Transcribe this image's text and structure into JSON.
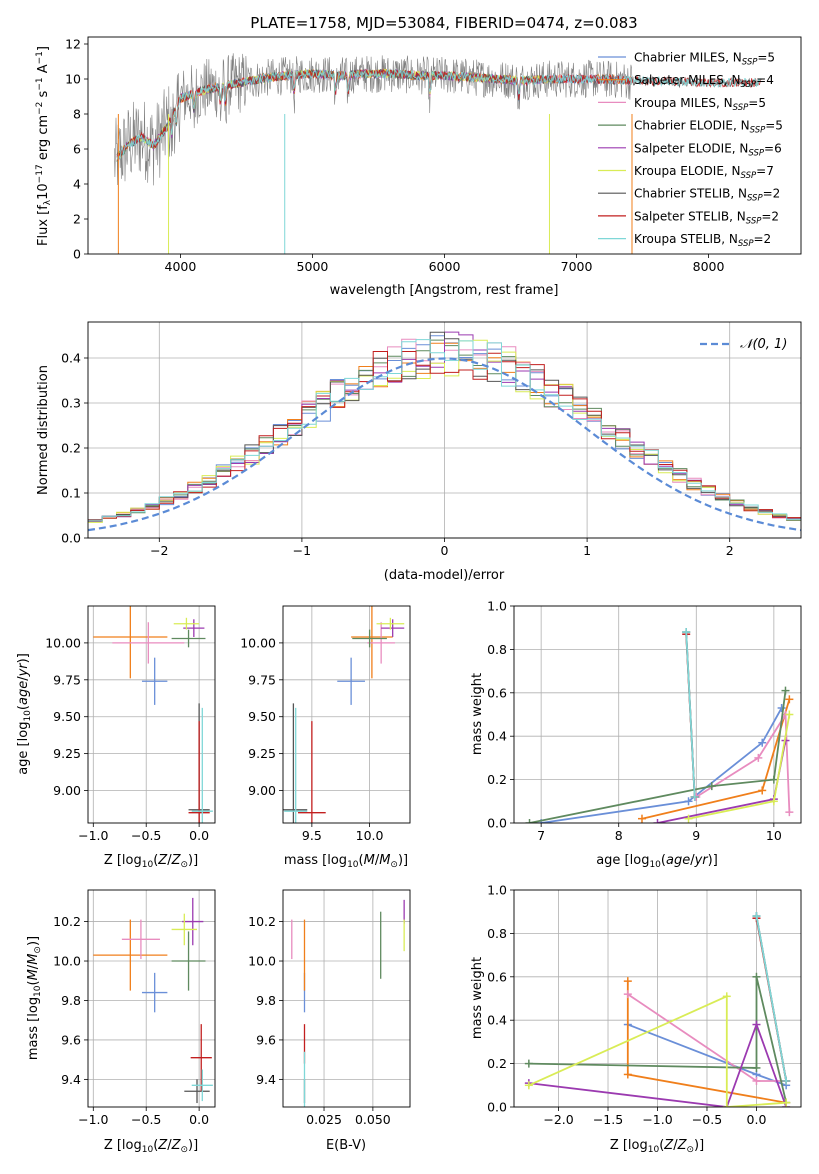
{
  "title": "PLATE=1758, MJD=53084, FIBERID=0474, z=0.083",
  "colors": {
    "Chabrier MILES": "#6a8fd8",
    "Salpeter MILES": "#f07f1b",
    "Kroupa MILES": "#e88cbf",
    "Chabrier ELODIE": "#5f8a5f",
    "Salpeter ELODIE": "#9b3ab0",
    "Kroupa ELODIE": "#d9ec56",
    "Chabrier STELIB": "#555555",
    "Salpeter STELIB": "#c21f1f",
    "Kroupa STELIB": "#7fd7d7",
    "data": "#808080",
    "normal": "#5b8bd6"
  },
  "chart_data": [
    {
      "type": "line",
      "panel": "spectrum",
      "xlabel": "wavelength [Angstrom, rest frame]",
      "ylabel": "Flux [f",
      "ylabel_sub": "λ",
      "ylabel_rest": "10",
      "ylabel_exp1": "−17",
      "ylabel_rest2": " erg cm",
      "ylabel_exp2": "−2",
      "ylabel_rest3": " s",
      "ylabel_exp3": "−1",
      "ylabel_rest4": " A",
      "ylabel_exp4": "−1",
      "ylabel_end": "]",
      "xlim": [
        3300,
        8700
      ],
      "ylim": [
        0,
        12.4
      ],
      "xticks": [
        4000,
        5000,
        6000,
        7000,
        8000
      ],
      "yticks": [
        0,
        2,
        4,
        6,
        8,
        10,
        12
      ],
      "legend_position": "right",
      "legend": [
        {
          "name": "Chabrier MILES",
          "nssp": "5"
        },
        {
          "name": "Salpeter MILES",
          "nssp": "4"
        },
        {
          "name": "Kroupa MILES",
          "nssp": "5"
        },
        {
          "name": "Chabrier ELODIE",
          "nssp": "5"
        },
        {
          "name": "Salpeter ELODIE",
          "nssp": "6"
        },
        {
          "name": "Kroupa ELODIE",
          "nssp": "7"
        },
        {
          "name": "Chabrier STELIB",
          "nssp": "2"
        },
        {
          "name": "Salpeter STELIB",
          "nssp": "2"
        },
        {
          "name": "Kroupa STELIB",
          "nssp": "2"
        }
      ],
      "legend_prefix": "N",
      "legend_sub": "SSP",
      "model_continuum": {
        "x": [
          3500,
          3600,
          3700,
          3800,
          3900,
          4000,
          4200,
          4400,
          4600,
          4800,
          5000,
          5200,
          5400,
          5600,
          5800,
          6000,
          6200,
          6400,
          6600,
          6800,
          7000,
          7200,
          7400,
          7600,
          7800,
          8000,
          8200,
          8400
        ],
        "y": [
          5.3,
          6.2,
          6.7,
          6.2,
          7.3,
          8.9,
          9.4,
          9.7,
          10.0,
          10.2,
          10.3,
          10.2,
          10.3,
          10.3,
          10.2,
          10.2,
          10.1,
          10.0,
          9.9,
          10.0,
          10.0,
          10.0,
          9.9,
          9.9,
          9.8,
          9.8,
          9.8,
          9.8
        ]
      }
    },
    {
      "type": "bar",
      "panel": "residual histogram",
      "xlabel": "(data-model)/error",
      "ylabel": "Normed distribution",
      "xlim": [
        -2.5,
        2.5
      ],
      "ylim": [
        0,
        0.48
      ],
      "xticks": [
        -2,
        -1,
        0,
        1,
        2
      ],
      "yticks": [
        0.0,
        0.1,
        0.2,
        0.3,
        0.4
      ],
      "legend": "𝒩(0, 1)",
      "bin_width": 0.1
    },
    {
      "type": "scatter",
      "panel": "age vs Z",
      "xlabel": "Z [log",
      "ylabel": "age  [log",
      "xlim": [
        -1.05,
        0.15
      ],
      "ylim": [
        8.78,
        10.25
      ],
      "xticks": [
        -1.0,
        -0.5,
        0.0
      ],
      "yticks": [
        9.0,
        9.25,
        9.5,
        9.75,
        10.0
      ],
      "points": [
        {
          "series": "Chabrier MILES",
          "x": -0.42,
          "y": 9.74,
          "xerr": 0.12,
          "yerr": 0.16
        },
        {
          "series": "Salpeter MILES",
          "x": -0.65,
          "y": 10.04,
          "xerr": 0.35,
          "yerr": 0.28
        },
        {
          "series": "Kroupa MILES",
          "x": -0.48,
          "y": 10.0,
          "xerr": 0.34,
          "yerr": 0.14
        },
        {
          "series": "Chabrier ELODIE",
          "x": -0.1,
          "y": 10.03,
          "xerr": 0.16,
          "yerr": 0.06
        },
        {
          "series": "Salpeter ELODIE",
          "x": -0.05,
          "y": 10.1,
          "xerr": 0.1,
          "yerr": 0.06
        },
        {
          "series": "Kroupa ELODIE",
          "x": -0.12,
          "y": 10.13,
          "xerr": 0.12,
          "yerr": 0.04
        },
        {
          "series": "Chabrier STELIB",
          "x": 0.0,
          "y": 8.87,
          "xerr": 0.1,
          "yerr": 0.72
        },
        {
          "series": "Salpeter STELIB",
          "x": 0.0,
          "y": 8.85,
          "xerr": 0.1,
          "yerr": 0.62
        },
        {
          "series": "Kroupa STELIB",
          "x": 0.03,
          "y": 8.86,
          "xerr": 0.1,
          "yerr": 0.7
        }
      ]
    },
    {
      "type": "scatter",
      "panel": "age vs mass",
      "xlabel": "mass [log",
      "xlim": [
        9.25,
        10.35
      ],
      "ylim": [
        8.78,
        10.25
      ],
      "xticks": [
        9.5,
        10.0
      ],
      "yticks": [
        9.0,
        9.25,
        9.5,
        9.75,
        10.0
      ],
      "points": [
        {
          "series": "Chabrier MILES",
          "x": 9.84,
          "y": 9.74,
          "xerr": 0.12,
          "yerr": 0.16
        },
        {
          "series": "Salpeter MILES",
          "x": 10.02,
          "y": 10.04,
          "xerr": 0.18,
          "yerr": 0.28
        },
        {
          "series": "Kroupa MILES",
          "x": 10.1,
          "y": 10.0,
          "xerr": 0.12,
          "yerr": 0.14
        },
        {
          "series": "Chabrier ELODIE",
          "x": 10.0,
          "y": 10.03,
          "xerr": 0.15,
          "yerr": 0.06
        },
        {
          "series": "Salpeter ELODIE",
          "x": 10.2,
          "y": 10.1,
          "xerr": 0.1,
          "yerr": 0.06
        },
        {
          "series": "Kroupa ELODIE",
          "x": 10.18,
          "y": 10.13,
          "xerr": 0.12,
          "yerr": 0.04
        },
        {
          "series": "Chabrier STELIB",
          "x": 9.34,
          "y": 8.87,
          "xerr": 0.12,
          "yerr": 0.72
        },
        {
          "series": "Salpeter STELIB",
          "x": 9.5,
          "y": 8.85,
          "xerr": 0.12,
          "yerr": 0.62
        },
        {
          "series": "Kroupa STELIB",
          "x": 9.36,
          "y": 8.86,
          "xerr": 0.1,
          "yerr": 0.7
        }
      ]
    },
    {
      "type": "line",
      "panel": "mass weight vs age",
      "xlabel": "age  [log",
      "ylabel": "mass weight",
      "xlim": [
        6.65,
        10.35
      ],
      "ylim": [
        0,
        1.0
      ],
      "xticks": [
        7,
        8,
        9,
        10
      ],
      "yticks": [
        0.0,
        0.2,
        0.4,
        0.6,
        0.8,
        1.0
      ],
      "series": [
        {
          "name": "Chabrier MILES",
          "x": [
            7.0,
            8.9,
            9.85,
            10.1
          ],
          "y": [
            0.0,
            0.1,
            0.37,
            0.53
          ]
        },
        {
          "name": "Salpeter MILES",
          "x": [
            8.3,
            9.85,
            10.2
          ],
          "y": [
            0.02,
            0.15,
            0.57
          ]
        },
        {
          "name": "Kroupa MILES",
          "x": [
            9.0,
            9.8,
            10.15,
            10.2
          ],
          "y": [
            0.12,
            0.3,
            0.5,
            0.05
          ]
        },
        {
          "name": "Chabrier ELODIE",
          "x": [
            6.85,
            9.2,
            10.0,
            10.15
          ],
          "y": [
            0.0,
            0.17,
            0.2,
            0.61
          ]
        },
        {
          "name": "Salpeter ELODIE",
          "x": [
            8.5,
            10.0,
            10.15
          ],
          "y": [
            0.0,
            0.11,
            0.38
          ]
        },
        {
          "name": "Kroupa ELODIE",
          "x": [
            8.9,
            10.0,
            10.2
          ],
          "y": [
            0.02,
            0.1,
            0.5
          ]
        },
        {
          "name": "Chabrier STELIB",
          "x": [
            8.87,
            8.98
          ],
          "y": [
            0.88,
            0.12
          ]
        },
        {
          "name": "Salpeter STELIB",
          "x": [
            8.87,
            8.98
          ],
          "y": [
            0.87,
            0.12
          ]
        },
        {
          "name": "Kroupa STELIB",
          "x": [
            8.87,
            8.98
          ],
          "y": [
            0.88,
            0.12
          ]
        }
      ]
    },
    {
      "type": "scatter",
      "panel": "mass vs Z",
      "xlabel": "Z [log",
      "ylabel": "mass [log",
      "xlim": [
        -1.05,
        0.15
      ],
      "ylim": [
        9.26,
        10.36
      ],
      "xticks": [
        -1.0,
        -0.5,
        0.0
      ],
      "yticks": [
        9.4,
        9.6,
        9.8,
        10.0,
        10.2
      ],
      "points": [
        {
          "series": "Chabrier MILES",
          "x": -0.42,
          "y": 9.84,
          "xerr": 0.12,
          "yerr": 0.1
        },
        {
          "series": "Salpeter MILES",
          "x": -0.65,
          "y": 10.03,
          "xerr": 0.35,
          "yerr": 0.18
        },
        {
          "series": "Kroupa MILES",
          "x": -0.55,
          "y": 10.11,
          "xerr": 0.18,
          "yerr": 0.1
        },
        {
          "series": "Chabrier ELODIE",
          "x": -0.1,
          "y": 10.0,
          "xerr": 0.16,
          "yerr": 0.15
        },
        {
          "series": "Salpeter ELODIE",
          "x": -0.06,
          "y": 10.2,
          "xerr": 0.1,
          "yerr": 0.12
        },
        {
          "series": "Kroupa ELODIE",
          "x": -0.14,
          "y": 10.16,
          "xerr": 0.12,
          "yerr": 0.08
        },
        {
          "series": "Chabrier STELIB",
          "x": -0.02,
          "y": 9.34,
          "xerr": 0.12,
          "yerr": 0.06
        },
        {
          "series": "Salpeter STELIB",
          "x": 0.02,
          "y": 9.51,
          "xerr": 0.1,
          "yerr": 0.17
        },
        {
          "series": "Kroupa STELIB",
          "x": 0.03,
          "y": 9.37,
          "xerr": 0.1,
          "yerr": 0.08
        }
      ]
    },
    {
      "type": "scatter",
      "panel": "mass vs E(B-V)",
      "xlabel": "E(B-V)",
      "xlim": [
        0.004,
        0.069
      ],
      "ylim": [
        9.26,
        10.36
      ],
      "xticks": [
        0.025,
        0.05
      ],
      "yticks": [
        9.4,
        9.6,
        9.8,
        10.0,
        10.2
      ],
      "points": [
        {
          "series": "Chabrier MILES",
          "x": 0.015,
          "y": 9.84,
          "xerr": 0.0,
          "yerr": 0.1
        },
        {
          "series": "Salpeter MILES",
          "x": 0.015,
          "y": 10.03,
          "xerr": 0.0,
          "yerr": 0.18
        },
        {
          "series": "Kroupa MILES",
          "x": 0.0085,
          "y": 10.11,
          "xerr": 0.0,
          "yerr": 0.1
        },
        {
          "series": "Chabrier ELODIE",
          "x": 0.054,
          "y": 10.08,
          "xerr": 0.0,
          "yerr": 0.17
        },
        {
          "series": "Salpeter ELODIE",
          "x": 0.066,
          "y": 10.25,
          "xerr": 0.0,
          "yerr": 0.06
        },
        {
          "series": "Kroupa ELODIE",
          "x": 0.066,
          "y": 10.13,
          "xerr": 0.0,
          "yerr": 0.08
        },
        {
          "series": "Chabrier STELIB",
          "x": 0.015,
          "y": 9.34,
          "xerr": 0.0,
          "yerr": 0.06
        },
        {
          "series": "Salpeter STELIB",
          "x": 0.015,
          "y": 9.58,
          "xerr": 0.0,
          "yerr": 0.1
        },
        {
          "series": "Kroupa STELIB",
          "x": 0.015,
          "y": 9.4,
          "xerr": 0.0,
          "yerr": 0.14
        }
      ]
    },
    {
      "type": "line",
      "panel": "mass weight vs Z",
      "xlabel": "Z [log",
      "ylabel": "mass weight",
      "xlim": [
        -2.45,
        0.45
      ],
      "ylim": [
        0,
        1.0
      ],
      "xticks": [
        -2.0,
        -1.5,
        -1.0,
        -0.5,
        0.0
      ],
      "yticks": [
        0.0,
        0.2,
        0.4,
        0.6,
        0.8,
        1.0
      ],
      "series": [
        {
          "name": "Chabrier MILES",
          "x": [
            -1.3,
            0.0,
            0.3
          ],
          "y": [
            0.38,
            0.15,
            0.1
          ]
        },
        {
          "name": "Salpeter MILES",
          "x": [
            -1.3,
            -1.3,
            0.3
          ],
          "y": [
            0.58,
            0.15,
            0.02
          ]
        },
        {
          "name": "Kroupa MILES",
          "x": [
            -1.3,
            0.0,
            0.3
          ],
          "y": [
            0.52,
            0.12,
            0.12
          ]
        },
        {
          "name": "Chabrier ELODIE",
          "x": [
            -2.3,
            0.0,
            0.0,
            0.3
          ],
          "y": [
            0.2,
            0.18,
            0.6,
            0.02
          ]
        },
        {
          "name": "Salpeter ELODIE",
          "x": [
            -2.3,
            -0.3,
            0.0,
            0.3
          ],
          "y": [
            0.11,
            0.0,
            0.38,
            0.0
          ]
        },
        {
          "name": "Kroupa ELODIE",
          "x": [
            -2.3,
            -0.3,
            -0.3,
            0.3
          ],
          "y": [
            0.1,
            0.51,
            0.0,
            0.02
          ]
        },
        {
          "name": "Chabrier STELIB",
          "x": [
            0.0,
            0.3
          ],
          "y": [
            0.88,
            0.12
          ]
        },
        {
          "name": "Salpeter STELIB",
          "x": [
            0.0,
            0.3
          ],
          "y": [
            0.87,
            0.12
          ]
        },
        {
          "name": "Kroupa STELIB",
          "x": [
            0.0,
            0.3
          ],
          "y": [
            0.88,
            0.12
          ]
        }
      ]
    }
  ]
}
